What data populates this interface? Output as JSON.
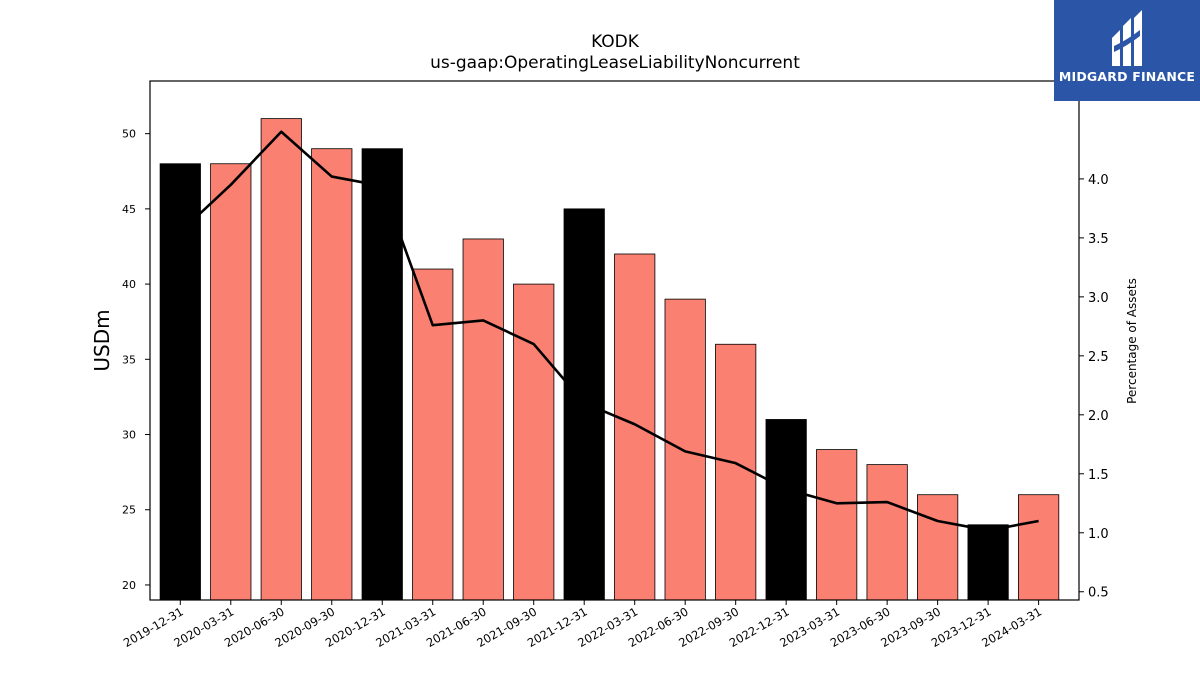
{
  "chart_data": {
    "type": "bar",
    "title": "KODK",
    "subtitle": "us-gaap:OperatingLeaseLiabilityNoncurrent",
    "ylabel": "USDm",
    "y2label": "Percentage of Assets",
    "categories": [
      "2019-12-31",
      "2020-03-31",
      "2020-06-30",
      "2020-09-30",
      "2020-12-31",
      "2021-03-31",
      "2021-06-30",
      "2021-09-30",
      "2021-12-31",
      "2022-03-31",
      "2022-06-30",
      "2022-09-30",
      "2022-12-31",
      "2023-03-31",
      "2023-06-30",
      "2023-09-30",
      "2023-12-31",
      "2024-03-31"
    ],
    "series": [
      {
        "type": "bar",
        "values": [
          48,
          48,
          51,
          49,
          49,
          41,
          43,
          40,
          45,
          42,
          39,
          36,
          31,
          29,
          28,
          26,
          24,
          26
        ],
        "highlight": [
          true,
          false,
          false,
          false,
          true,
          false,
          false,
          false,
          true,
          false,
          false,
          false,
          true,
          false,
          false,
          false,
          true,
          false
        ]
      },
      {
        "type": "line",
        "axis": "right",
        "values": [
          3.55,
          3.95,
          4.4,
          4.02,
          3.94,
          2.76,
          2.8,
          2.6,
          2.1,
          1.92,
          1.69,
          1.59,
          1.37,
          1.25,
          1.26,
          1.1,
          1.02,
          1.1
        ]
      }
    ],
    "ylim": [
      19,
      53.5
    ],
    "y2lim": [
      0.43,
      4.83
    ],
    "yticks": [
      20,
      25,
      30,
      35,
      40,
      45,
      50
    ],
    "y2ticks": [
      0.5,
      1.0,
      1.5,
      2.0,
      2.5,
      3.0,
      3.5,
      4.0
    ],
    "grid": false,
    "colors": {
      "bar": "#fa8072",
      "highlight": "#000000",
      "line": "#000000"
    }
  },
  "logo": {
    "text": "MIDGARD FINANCE",
    "background": "#2b56a8"
  }
}
